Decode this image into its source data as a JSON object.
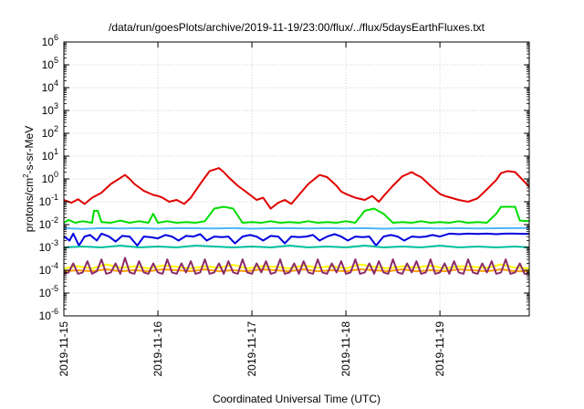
{
  "chart_data": {
    "type": "line",
    "title": "/data/run/goesPlots/archive/2019-11-19/23:00/flux/../flux/5daysEarthFluxes.txt",
    "xlabel": "Coordinated Universal Time (UTC)",
    "ylabel_parts": [
      "protons/cm",
      "2",
      "-s-sr-MeV"
    ],
    "x_unit": "days since 2019-11-15 00:00 UTC",
    "xlim": [
      0,
      4.95
    ],
    "x_ticks": [
      {
        "x": 0,
        "label": "2019-11-15"
      },
      {
        "x": 1,
        "label": "2019-11-16"
      },
      {
        "x": 2,
        "label": "2019-11-17"
      },
      {
        "x": 3,
        "label": "2019-11-18"
      },
      {
        "x": 4,
        "label": "2019-11-19"
      }
    ],
    "y_scale": "log",
    "ylim": [
      1e-06,
      1000000.0
    ],
    "y_ticks": [
      {
        "value": 1e-06,
        "base": "10",
        "exp": "-6"
      },
      {
        "value": 1e-05,
        "base": "10",
        "exp": "-5"
      },
      {
        "value": 0.0001,
        "base": "10",
        "exp": "-4"
      },
      {
        "value": 0.001,
        "base": "10",
        "exp": "-3"
      },
      {
        "value": 0.01,
        "base": "10",
        "exp": "-2"
      },
      {
        "value": 0.1,
        "base": "10",
        "exp": "-1"
      },
      {
        "value": 1.0,
        "base": "10",
        "exp": "0"
      },
      {
        "value": 10.0,
        "base": "10",
        "exp": "1"
      },
      {
        "value": 100.0,
        "base": "10",
        "exp": "2"
      },
      {
        "value": 1000.0,
        "base": "10",
        "exp": "3"
      },
      {
        "value": 10000.0,
        "base": "10",
        "exp": "4"
      },
      {
        "value": 100000.0,
        "base": "10",
        "exp": "5"
      },
      {
        "value": 1000000.0,
        "base": "10",
        "exp": "6"
      }
    ],
    "grid": true,
    "legend": "none",
    "series": [
      {
        "color": "#e00000",
        "x": [
          0,
          0.08,
          0.15,
          0.22,
          0.3,
          0.4,
          0.5,
          0.6,
          0.65,
          0.7,
          0.75,
          0.85,
          0.95,
          1.0,
          1.05,
          1.12,
          1.2,
          1.28,
          1.35,
          1.4,
          1.45,
          1.55,
          1.65,
          1.7,
          1.75,
          1.85,
          1.95,
          2.05,
          2.12,
          2.2,
          2.28,
          2.35,
          2.42,
          2.5,
          2.6,
          2.7,
          2.72,
          2.8,
          2.9,
          2.95,
          3.0,
          3.05,
          3.1,
          3.2,
          3.28,
          3.35,
          3.42,
          3.5,
          3.6,
          3.7,
          3.75,
          3.8,
          3.9,
          4.0,
          4.05,
          4.12,
          4.2,
          4.3,
          4.4,
          4.5,
          4.6,
          4.65,
          4.72,
          4.8,
          4.88,
          4.95
        ],
        "y": [
          0.12,
          0.09,
          0.13,
          0.08,
          0.15,
          0.25,
          0.6,
          1.1,
          1.5,
          1.0,
          0.6,
          0.3,
          0.2,
          0.18,
          0.15,
          0.1,
          0.12,
          0.08,
          0.15,
          0.3,
          0.6,
          2.2,
          3.0,
          2.0,
          1.2,
          0.5,
          0.25,
          0.12,
          0.15,
          0.05,
          0.09,
          0.12,
          0.08,
          0.2,
          0.6,
          1.3,
          1.5,
          1.2,
          0.5,
          0.28,
          0.22,
          0.18,
          0.15,
          0.12,
          0.18,
          0.1,
          0.22,
          0.5,
          1.3,
          2.0,
          1.5,
          1.2,
          0.5,
          0.22,
          0.18,
          0.15,
          0.12,
          0.1,
          0.14,
          0.35,
          0.9,
          1.8,
          2.2,
          2.0,
          0.9,
          0.45
        ]
      },
      {
        "color": "#00dd00",
        "x": [
          0,
          0.05,
          0.12,
          0.2,
          0.3,
          0.32,
          0.36,
          0.4,
          0.5,
          0.6,
          0.7,
          0.8,
          0.9,
          0.95,
          1.0,
          1.1,
          1.2,
          1.3,
          1.4,
          1.5,
          1.6,
          1.7,
          1.8,
          1.9,
          2.0,
          2.1,
          2.2,
          2.3,
          2.4,
          2.5,
          2.6,
          2.7,
          2.8,
          2.9,
          3.0,
          3.1,
          3.2,
          3.3,
          3.4,
          3.5,
          3.6,
          3.7,
          3.8,
          3.9,
          4.0,
          4.1,
          4.2,
          4.3,
          4.4,
          4.5,
          4.6,
          4.65,
          4.72,
          4.8,
          4.85,
          4.95
        ],
        "y": [
          0.012,
          0.016,
          0.012,
          0.014,
          0.012,
          0.04,
          0.04,
          0.013,
          0.012,
          0.015,
          0.012,
          0.014,
          0.012,
          0.03,
          0.012,
          0.014,
          0.012,
          0.013,
          0.012,
          0.014,
          0.05,
          0.06,
          0.05,
          0.012,
          0.013,
          0.012,
          0.014,
          0.012,
          0.013,
          0.012,
          0.014,
          0.012,
          0.013,
          0.012,
          0.014,
          0.012,
          0.04,
          0.05,
          0.03,
          0.012,
          0.013,
          0.012,
          0.014,
          0.012,
          0.013,
          0.012,
          0.014,
          0.012,
          0.013,
          0.012,
          0.03,
          0.06,
          0.06,
          0.06,
          0.015,
          0.014
        ]
      },
      {
        "color": "#4fb5ff",
        "x": [
          0,
          0.2,
          0.4,
          0.6,
          0.8,
          1.0,
          1.2,
          1.4,
          1.6,
          1.8,
          2.0,
          2.2,
          2.4,
          2.6,
          2.8,
          3.0,
          3.2,
          3.4,
          3.6,
          3.8,
          4.0,
          4.2,
          4.4,
          4.6,
          4.8,
          4.95
        ],
        "y": [
          0.007,
          0.0065,
          0.007,
          0.0068,
          0.007,
          0.0066,
          0.007,
          0.0069,
          0.0068,
          0.007,
          0.0066,
          0.0069,
          0.007,
          0.0067,
          0.007,
          0.0068,
          0.007,
          0.0066,
          0.0069,
          0.007,
          0.0067,
          0.007,
          0.0068,
          0.0069,
          0.007,
          0.007
        ]
      },
      {
        "color": "#0000e0",
        "x": [
          0,
          0.06,
          0.1,
          0.16,
          0.22,
          0.28,
          0.35,
          0.4,
          0.48,
          0.55,
          0.62,
          0.7,
          0.78,
          0.85,
          0.92,
          1.0,
          1.08,
          1.15,
          1.22,
          1.3,
          1.38,
          1.45,
          1.52,
          1.6,
          1.68,
          1.75,
          1.82,
          1.9,
          1.98,
          2.05,
          2.12,
          2.2,
          2.28,
          2.35,
          2.42,
          2.5,
          2.58,
          2.65,
          2.72,
          2.8,
          2.88,
          2.95,
          3.02,
          3.1,
          3.18,
          3.25,
          3.32,
          3.4,
          3.48,
          3.55,
          3.62,
          3.7,
          3.78,
          3.85,
          3.92,
          4.0,
          4.1,
          4.2,
          4.3,
          4.4,
          4.5,
          4.6,
          4.7,
          4.8,
          4.9,
          4.95
        ],
        "y": [
          0.003,
          0.002,
          0.004,
          0.0012,
          0.003,
          0.0035,
          0.002,
          0.004,
          0.003,
          0.0018,
          0.0032,
          0.003,
          0.0012,
          0.003,
          0.0028,
          0.0025,
          0.0035,
          0.003,
          0.002,
          0.0032,
          0.003,
          0.0038,
          0.002,
          0.003,
          0.0028,
          0.003,
          0.0015,
          0.003,
          0.0035,
          0.003,
          0.002,
          0.0032,
          0.003,
          0.0015,
          0.003,
          0.0028,
          0.003,
          0.0035,
          0.002,
          0.003,
          0.0038,
          0.003,
          0.002,
          0.003,
          0.0028,
          0.003,
          0.0012,
          0.003,
          0.0035,
          0.003,
          0.002,
          0.003,
          0.0028,
          0.003,
          0.0035,
          0.003,
          0.004,
          0.0038,
          0.004,
          0.0039,
          0.004,
          0.0038,
          0.004,
          0.004,
          0.0039,
          0.004
        ]
      },
      {
        "color": "#00c0a0",
        "x": [
          0,
          0.2,
          0.4,
          0.6,
          0.8,
          1.0,
          1.2,
          1.4,
          1.6,
          1.8,
          2.0,
          2.2,
          2.4,
          2.6,
          2.8,
          3.0,
          3.2,
          3.4,
          3.6,
          3.8,
          4.0,
          4.2,
          4.4,
          4.6,
          4.8,
          4.95
        ],
        "y": [
          0.001,
          0.0011,
          0.001,
          0.0012,
          0.001,
          0.0011,
          0.001,
          0.0012,
          0.0011,
          0.001,
          0.0011,
          0.001,
          0.0012,
          0.001,
          0.0011,
          0.001,
          0.0012,
          0.001,
          0.0011,
          0.001,
          0.0012,
          0.001,
          0.0011,
          0.001,
          0.0011,
          0.001
        ]
      },
      {
        "color": "#ffff00",
        "x": [
          0,
          0.15,
          0.3,
          0.45,
          0.6,
          0.75,
          0.9,
          1.05,
          1.2,
          1.35,
          1.5,
          1.65,
          1.8,
          1.95,
          2.1,
          2.25,
          2.4,
          2.55,
          2.7,
          2.85,
          3.0,
          3.15,
          3.3,
          3.45,
          3.6,
          3.75,
          3.9,
          4.05,
          4.2,
          4.35,
          4.5,
          4.65,
          4.8,
          4.95
        ],
        "y": [
          0.00012,
          0.00015,
          0.00012,
          0.00018,
          0.00013,
          0.00015,
          0.00012,
          0.00016,
          0.00014,
          0.00012,
          0.00015,
          0.00013,
          0.00017,
          0.00012,
          0.00015,
          0.00014,
          0.00012,
          0.00016,
          0.00013,
          0.00015,
          0.00012,
          0.00018,
          0.00014,
          0.00012,
          0.00015,
          0.00013,
          0.00016,
          0.00012,
          0.00015,
          0.00014,
          0.00013,
          0.00018,
          0.00013,
          0.00012
        ]
      },
      {
        "color": "#ff9f00",
        "x": [
          0,
          0.15,
          0.3,
          0.45,
          0.6,
          0.75,
          0.9,
          1.05,
          1.2,
          1.35,
          1.5,
          1.65,
          1.8,
          1.95,
          2.1,
          2.25,
          2.4,
          2.55,
          2.7,
          2.85,
          3.0,
          3.15,
          3.3,
          3.45,
          3.6,
          3.75,
          3.9,
          4.05,
          4.2,
          4.35,
          4.5,
          4.65,
          4.8,
          4.95
        ],
        "y": [
          9e-05,
          0.0001,
          9e-05,
          0.00011,
          9e-05,
          0.0001,
          9e-05,
          0.00011,
          0.0001,
          9e-05,
          0.00011,
          9e-05,
          0.0001,
          9e-05,
          0.00011,
          0.0001,
          9e-05,
          0.00011,
          9e-05,
          0.0001,
          9e-05,
          0.00011,
          0.0001,
          9e-05,
          0.00011,
          9e-05,
          0.0001,
          9e-05,
          0.00011,
          0.0001,
          9e-05,
          0.00011,
          9e-05,
          9e-05
        ]
      },
      {
        "color": "#8b2b6b",
        "x": [
          0,
          0.05,
          0.1,
          0.15,
          0.2,
          0.25,
          0.3,
          0.35,
          0.4,
          0.45,
          0.5,
          0.55,
          0.6,
          0.65,
          0.7,
          0.75,
          0.8,
          0.85,
          0.9,
          0.95,
          1.0,
          1.05,
          1.1,
          1.15,
          1.2,
          1.25,
          1.3,
          1.35,
          1.4,
          1.45,
          1.5,
          1.55,
          1.6,
          1.65,
          1.7,
          1.75,
          1.8,
          1.85,
          1.9,
          1.95,
          2.0,
          2.05,
          2.1,
          2.15,
          2.2,
          2.25,
          2.3,
          2.35,
          2.4,
          2.45,
          2.5,
          2.55,
          2.6,
          2.65,
          2.7,
          2.75,
          2.8,
          2.85,
          2.9,
          2.95,
          3.0,
          3.05,
          3.1,
          3.15,
          3.2,
          3.25,
          3.3,
          3.35,
          3.4,
          3.45,
          3.5,
          3.55,
          3.6,
          3.65,
          3.7,
          3.75,
          3.8,
          3.85,
          3.9,
          3.95,
          4.0,
          4.05,
          4.1,
          4.15,
          4.2,
          4.25,
          4.3,
          4.35,
          4.4,
          4.45,
          4.5,
          4.55,
          4.6,
          4.65,
          4.7,
          4.75,
          4.8,
          4.85,
          4.9,
          4.95
        ],
        "y": [
          7e-05,
          8e-05,
          0.0002,
          7e-05,
          8e-05,
          0.00025,
          7e-05,
          9e-05,
          0.0003,
          7e-05,
          8e-05,
          0.0002,
          7e-05,
          0.00035,
          8e-05,
          7e-05,
          0.00025,
          8e-05,
          7e-05,
          0.0002,
          8e-05,
          7e-05,
          0.0003,
          8e-05,
          7e-05,
          0.0002,
          8e-05,
          0.00025,
          7e-05,
          8e-05,
          0.0003,
          7e-05,
          8e-05,
          0.0002,
          7e-05,
          0.00025,
          8e-05,
          7e-05,
          0.0003,
          8e-05,
          7e-05,
          0.0002,
          8e-05,
          0.00025,
          7e-05,
          8e-05,
          0.0003,
          7e-05,
          8e-05,
          0.0002,
          7e-05,
          0.00025,
          8e-05,
          7e-05,
          0.0003,
          8e-05,
          7e-05,
          0.0002,
          8e-05,
          0.00025,
          7e-05,
          8e-05,
          0.0003,
          7e-05,
          8e-05,
          0.0002,
          7e-05,
          0.00025,
          8e-05,
          7e-05,
          0.0003,
          8e-05,
          7e-05,
          0.0002,
          8e-05,
          0.00025,
          7e-05,
          8e-05,
          0.0003,
          7e-05,
          8e-05,
          0.0002,
          7e-05,
          0.00025,
          8e-05,
          7e-05,
          0.0003,
          8e-05,
          7e-05,
          0.0002,
          8e-05,
          0.00025,
          7e-05,
          8e-05,
          0.0003,
          7e-05,
          8e-05,
          0.0002,
          7e-05,
          7e-05
        ]
      }
    ]
  }
}
